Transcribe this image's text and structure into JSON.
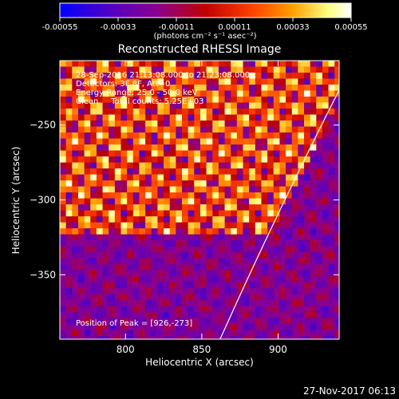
{
  "chart_data": {
    "type": "heatmap",
    "title": "Reconstructed RHESSI Image",
    "xlabel": "Heliocentric X (arcsec)",
    "ylabel": "Heliocentric Y (arcsec)",
    "xlim": [
      757,
      940
    ],
    "ylim": [
      -393,
      -207
    ],
    "xticks": [
      800,
      850,
      900
    ],
    "xtick_labels": [
      "800",
      "850",
      "900"
    ],
    "yticks": [
      -250,
      -300,
      -350
    ],
    "ytick_labels": [
      "−250",
      "−300",
      "−350"
    ],
    "colorbar": {
      "range": [
        -0.00055,
        0.00055
      ],
      "ticks": [
        -0.00055,
        -0.00033,
        -0.00011,
        0.00011,
        0.00033,
        0.00055
      ],
      "tick_labels": [
        "-0.00055",
        "-0.00033",
        "-0.00011",
        "0.00011",
        "0.00033",
        "0.00055"
      ],
      "units_label": "(photons cm⁻² s⁻¹ asec⁻²)",
      "colors": [
        "#0000ff",
        "#4d00c8",
        "#8a0090",
        "#c00000",
        "#ff4000",
        "#ffa000",
        "#ffff80",
        "#ffffff"
      ]
    },
    "annotations": {
      "time_range": "28-Sep-2016 21:13:08.000 to 21:23:08.000",
      "detectors": "Detectors: 3F 8F, Att=0",
      "energy": "Energy Range: 25.0 - 50.0 keV",
      "clean": "Clean     Total counts: 5.25E+03",
      "peak": "Position of Peak = [926,-273]"
    },
    "limb": {
      "color": "#ffffff"
    },
    "pixel_size_arcsec": 4,
    "grid": false
  },
  "footer_date": "27-Nov-2017 06:13"
}
